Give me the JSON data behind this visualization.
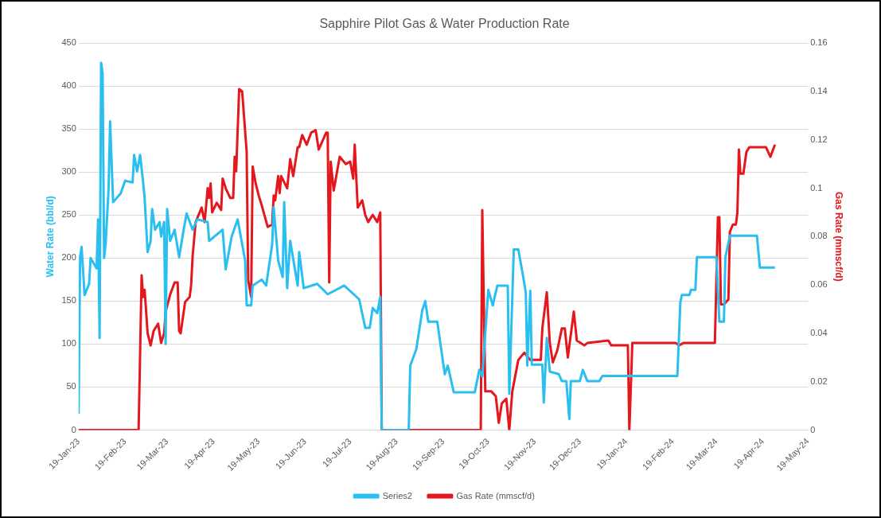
{
  "chart_data": {
    "type": "line",
    "title": "Sapphire Pilot Gas & Water Production Rate",
    "ylabel": "Water Rate (bbl/d)",
    "y2label": "Gas Rate (mmscf/d)",
    "xlim": [
      "2023-01-19",
      "2024-05-19"
    ],
    "xticks": [
      {
        "value": "2023-01-19",
        "label": "19-Jan-23"
      },
      {
        "value": "2023-02-19",
        "label": "19-Feb-23"
      },
      {
        "value": "2023-03-19",
        "label": "19-Mar-23"
      },
      {
        "value": "2023-04-19",
        "label": "19-Apr-23"
      },
      {
        "value": "2023-05-19",
        "label": "19-May-23"
      },
      {
        "value": "2023-06-19",
        "label": "19-Jun-23"
      },
      {
        "value": "2023-07-19",
        "label": "19-Jul-23"
      },
      {
        "value": "2023-08-19",
        "label": "19-Aug-23"
      },
      {
        "value": "2023-09-19",
        "label": "19-Sep-23"
      },
      {
        "value": "2023-10-19",
        "label": "19-Oct-23"
      },
      {
        "value": "2023-11-19",
        "label": "19-Nov-23"
      },
      {
        "value": "2023-12-19",
        "label": "19-Dec-23"
      },
      {
        "value": "2024-01-19",
        "label": "19-Jan-24"
      },
      {
        "value": "2024-02-19",
        "label": "19-Feb-24"
      },
      {
        "value": "2024-03-19",
        "label": "19-Mar-24"
      },
      {
        "value": "2024-04-19",
        "label": "19-Apr-24"
      },
      {
        "value": "2024-05-19",
        "label": "19-May-24"
      }
    ],
    "ylim": [
      0,
      450
    ],
    "yticks": [
      0,
      50,
      100,
      150,
      200,
      250,
      300,
      350,
      400,
      450
    ],
    "y2lim": [
      0,
      0.16
    ],
    "y2ticks": [
      0,
      0.02,
      0.04,
      0.06,
      0.08,
      0.1,
      0.12,
      0.14,
      0.16
    ],
    "grid": "y",
    "legend": "bottom",
    "marker": "none",
    "line_style": "solid",
    "series": [
      {
        "name": "Series2",
        "color": "#29bff0",
        "x": [
          "2023-01-19",
          "2023-01-20",
          "2023-01-21",
          "2023-01-23",
          "2023-01-26",
          "2023-01-27",
          "2023-01-31",
          "2023-02-01",
          "2023-02-02",
          "2023-02-03",
          "2023-02-04",
          "2023-02-05",
          "2023-02-06",
          "2023-02-08",
          "2023-02-09",
          "2023-02-11",
          "2023-02-16",
          "2023-02-19",
          "2023-02-24",
          "2023-02-25",
          "2023-02-27",
          "2023-03-01",
          "2023-03-03",
          "2023-03-04",
          "2023-03-06",
          "2023-03-08",
          "2023-03-09",
          "2023-03-11",
          "2023-03-14",
          "2023-03-15",
          "2023-03-17",
          "2023-03-18",
          "2023-03-19",
          "2023-03-21",
          "2023-03-24",
          "2023-03-27",
          "2023-03-30",
          "2023-04-01",
          "2023-04-05",
          "2023-04-08",
          "2023-04-15",
          "2023-04-16",
          "2023-04-25",
          "2023-04-27",
          "2023-05-01",
          "2023-05-05",
          "2023-05-10",
          "2023-05-11",
          "2023-05-14",
          "2023-05-15",
          "2023-05-21",
          "2023-05-24",
          "2023-05-28",
          "2023-05-29",
          "2023-06-01",
          "2023-06-04",
          "2023-06-05",
          "2023-06-07",
          "2023-06-09",
          "2023-06-14",
          "2023-06-15",
          "2023-06-18",
          "2023-06-27",
          "2023-07-04",
          "2023-07-15",
          "2023-07-25",
          "2023-07-29",
          "2023-08-01",
          "2023-08-03",
          "2023-08-06",
          "2023-08-08",
          "2023-08-09",
          "2023-08-27",
          "2023-08-28",
          "2023-09-01",
          "2023-09-05",
          "2023-09-07",
          "2023-09-09",
          "2023-09-15",
          "2023-09-20",
          "2023-09-22",
          "2023-09-26",
          "2023-10-10",
          "2023-10-13",
          "2023-10-15",
          "2023-10-19",
          "2023-10-22",
          "2023-10-25",
          "2023-11-01",
          "2023-11-02",
          "2023-11-05",
          "2023-11-08",
          "2023-11-11",
          "2023-11-13",
          "2023-11-14",
          "2023-11-16",
          "2023-11-17",
          "2023-11-24",
          "2023-11-25",
          "2023-11-27",
          "2023-11-29",
          "2023-12-05",
          "2023-12-07",
          "2023-12-10",
          "2023-12-12",
          "2023-12-13",
          "2023-12-19",
          "2023-12-21",
          "2023-12-24",
          "2024-01-01",
          "2024-01-03",
          "2024-02-22",
          "2024-02-24",
          "2024-02-25",
          "2024-03-01",
          "2024-03-02",
          "2024-03-05",
          "2024-03-06",
          "2024-03-19",
          "2024-03-21",
          "2024-03-24",
          "2024-03-25",
          "2024-03-28",
          "2024-04-15",
          "2024-04-17",
          "2024-04-27"
        ],
        "values": [
          19,
          201,
          213,
          157,
          170,
          200,
          188,
          245,
          107,
          427,
          415,
          200,
          216,
          281,
          359,
          265,
          275,
          290,
          288,
          320,
          301,
          320,
          288,
          270,
          207,
          220,
          257,
          233,
          242,
          225,
          242,
          100,
          257,
          220,
          233,
          201,
          233,
          252,
          233,
          245,
          242,
          220,
          233,
          187,
          225,
          245,
          197,
          145,
          145,
          168,
          175,
          168,
          216,
          259,
          197,
          178,
          265,
          165,
          220,
          168,
          207,
          165,
          170,
          158,
          168,
          152,
          119,
          119,
          142,
          136,
          155,
          0,
          0,
          75,
          94,
          139,
          150,
          126,
          126,
          65,
          75,
          44,
          44,
          70,
          62,
          163,
          145,
          168,
          168,
          42,
          210,
          210,
          181,
          160,
          75,
          162,
          76,
          76,
          32,
          107,
          68,
          65,
          57,
          57,
          13,
          57,
          57,
          70,
          57,
          57,
          63,
          63,
          149,
          157,
          157,
          163,
          163,
          201,
          201,
          126,
          126,
          201,
          226,
          226,
          189,
          189
        ]
      },
      {
        "name": "Gas Rate (mmscf/d)",
        "color": "#e3171c",
        "axis": "y2",
        "x": [
          "2023-01-19",
          "2023-02-28",
          "2023-03-02",
          "2023-03-03",
          "2023-03-04",
          "2023-03-06",
          "2023-03-08",
          "2023-03-10",
          "2023-03-13",
          "2023-03-15",
          "2023-03-17",
          "2023-03-18",
          "2023-03-21",
          "2023-03-24",
          "2023-03-26",
          "2023-03-27",
          "2023-03-28",
          "2023-03-31",
          "2023-04-03",
          "2023-04-04",
          "2023-04-05",
          "2023-04-07",
          "2023-04-11",
          "2023-04-13",
          "2023-04-15",
          "2023-04-16",
          "2023-04-17",
          "2023-04-18",
          "2023-04-21",
          "2023-04-24",
          "2023-04-25",
          "2023-04-27",
          "2023-04-30",
          "2023-05-02",
          "2023-05-03",
          "2023-05-04",
          "2023-05-05",
          "2023-05-06",
          "2023-05-08",
          "2023-05-11",
          "2023-05-12",
          "2023-05-14",
          "2023-05-15",
          "2023-05-17",
          "2023-05-19",
          "2023-05-21",
          "2023-05-25",
          "2023-05-28",
          "2023-05-29",
          "2023-05-30",
          "2023-06-01",
          "2023-06-02",
          "2023-06-03",
          "2023-06-07",
          "2023-06-09",
          "2023-06-11",
          "2023-06-14",
          "2023-06-15",
          "2023-06-17",
          "2023-06-20",
          "2023-06-23",
          "2023-06-26",
          "2023-06-28",
          "2023-07-03",
          "2023-07-04",
          "2023-07-05",
          "2023-07-06",
          "2023-07-08",
          "2023-07-12",
          "2023-07-16",
          "2023-07-19",
          "2023-07-21",
          "2023-07-22",
          "2023-07-24",
          "2023-07-27",
          "2023-07-29",
          "2023-07-31",
          "2023-08-03",
          "2023-08-06",
          "2023-08-08",
          "2023-08-09",
          "2023-10-14",
          "2023-10-15",
          "2023-10-17",
          "2023-10-21",
          "2023-10-24",
          "2023-10-26",
          "2023-10-28",
          "2023-10-31",
          "2023-11-02",
          "2023-11-04",
          "2023-11-08",
          "2023-11-12",
          "2023-11-16",
          "2023-11-23",
          "2023-11-24",
          "2023-11-27",
          "2023-11-29",
          "2023-12-01",
          "2023-12-04",
          "2023-12-07",
          "2023-12-09",
          "2023-12-11",
          "2023-12-15",
          "2023-12-17",
          "2023-12-22",
          "2023-12-24",
          "2024-01-07",
          "2024-01-09",
          "2024-01-20",
          "2024-01-21",
          "2024-01-23",
          "2024-02-21",
          "2024-02-23",
          "2024-02-26",
          "2024-03-18",
          "2024-03-20",
          "2024-03-21",
          "2024-03-22",
          "2024-03-24",
          "2024-03-27",
          "2024-03-28",
          "2024-03-30",
          "2024-04-01",
          "2024-04-02",
          "2024-04-03",
          "2024-04-04",
          "2024-04-06",
          "2024-04-08",
          "2024-04-10",
          "2024-04-21",
          "2024-04-24",
          "2024-04-27"
        ],
        "values": [
          0,
          0,
          0.064,
          0.055,
          0.058,
          0.04,
          0.035,
          0.041,
          0.044,
          0.036,
          0.04,
          0.049,
          0.056,
          0.061,
          0.061,
          0.041,
          0.04,
          0.053,
          0.055,
          0.06,
          0.072,
          0.086,
          0.092,
          0.086,
          0.1,
          0.096,
          0.102,
          0.09,
          0.094,
          0.091,
          0.104,
          0.1,
          0.096,
          0.096,
          0.113,
          0.107,
          0.124,
          0.141,
          0.14,
          0.115,
          0.062,
          0.055,
          0.109,
          0.102,
          0.097,
          0.093,
          0.084,
          0.085,
          0.097,
          0.095,
          0.105,
          0.098,
          0.105,
          0.1,
          0.112,
          0.105,
          0.117,
          0.117,
          0.122,
          0.118,
          0.123,
          0.124,
          0.116,
          0.123,
          0.123,
          0.061,
          0.111,
          0.099,
          0.113,
          0.11,
          0.111,
          0.104,
          0.118,
          0.092,
          0.095,
          0.089,
          0.086,
          0.089,
          0.086,
          0.09,
          0,
          0,
          0.091,
          0.016,
          0.016,
          0.014,
          0.003,
          0.011,
          0.013,
          0,
          0.016,
          0.029,
          0.032,
          0.029,
          0.029,
          0.042,
          0.057,
          0.036,
          0.028,
          0.033,
          0.042,
          0.042,
          0.03,
          0.049,
          0.037,
          0.035,
          0.036,
          0.037,
          0.035,
          0.035,
          0,
          0.036,
          0.036,
          0.035,
          0.036,
          0.036,
          0.088,
          0.088,
          0.052,
          0.052,
          0.054,
          0.082,
          0.085,
          0.085,
          0.09,
          0.116,
          0.106,
          0.106,
          0.115,
          0.117,
          0.117,
          0.113,
          0.118
        ]
      }
    ]
  }
}
